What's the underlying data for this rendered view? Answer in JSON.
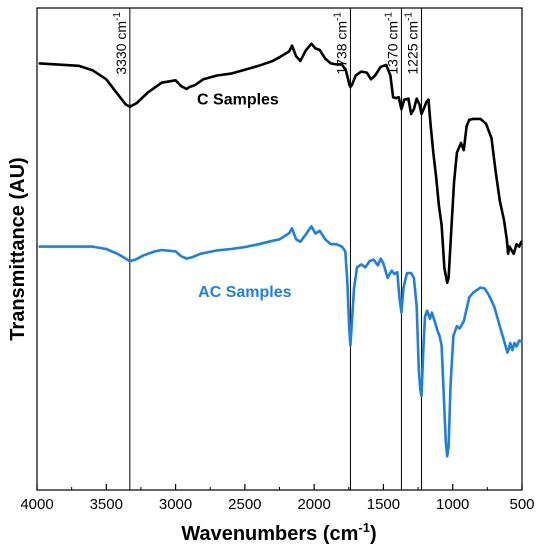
{
  "chart_data": {
    "type": "line",
    "xlabel_main": "Wavenumbers (cm",
    "xlabel_sup": "-1",
    "xlabel_end": ")",
    "ylabel": "Transmittance (AU)",
    "xlim": [
      4000,
      500
    ],
    "x_reversed": true,
    "y_ticks_shown": false,
    "grid": false,
    "x_ticks": [
      4000,
      3500,
      3000,
      2500,
      2000,
      1500,
      1000,
      500
    ],
    "x_tick_labels": [
      "4000",
      "3500",
      "3000",
      "2500",
      "2000",
      "1500",
      "1000",
      "500"
    ],
    "annotations": [
      {
        "x": 3330,
        "label": "3330 cm",
        "sup": "-1"
      },
      {
        "x": 1738,
        "label": "1738 cm",
        "sup": "-1"
      },
      {
        "x": 1370,
        "label": "1370 cm",
        "sup": "-1"
      },
      {
        "x": 1225,
        "label": "1225 cm",
        "sup": "-1"
      }
    ],
    "series": [
      {
        "name": "C Samples",
        "color": "#000000",
        "points": [
          [
            3980,
            0.885
          ],
          [
            3700,
            0.88
          ],
          [
            3600,
            0.871
          ],
          [
            3500,
            0.852
          ],
          [
            3420,
            0.822
          ],
          [
            3360,
            0.8
          ],
          [
            3330,
            0.795
          ],
          [
            3280,
            0.803
          ],
          [
            3200,
            0.825
          ],
          [
            3100,
            0.845
          ],
          [
            3000,
            0.85
          ],
          [
            2960,
            0.838
          ],
          [
            2920,
            0.832
          ],
          [
            2900,
            0.836
          ],
          [
            2860,
            0.84
          ],
          [
            2800,
            0.852
          ],
          [
            2700,
            0.86
          ],
          [
            2600,
            0.864
          ],
          [
            2500,
            0.872
          ],
          [
            2400,
            0.88
          ],
          [
            2300,
            0.89
          ],
          [
            2250,
            0.898
          ],
          [
            2180,
            0.91
          ],
          [
            2160,
            0.922
          ],
          [
            2130,
            0.9
          ],
          [
            2100,
            0.89
          ],
          [
            2060,
            0.912
          ],
          [
            2020,
            0.926
          ],
          [
            1990,
            0.916
          ],
          [
            1960,
            0.913
          ],
          [
            1920,
            0.895
          ],
          [
            1880,
            0.885
          ],
          [
            1840,
            0.883
          ],
          [
            1800,
            0.883
          ],
          [
            1770,
            0.87
          ],
          [
            1745,
            0.84
          ],
          [
            1738,
            0.836
          ],
          [
            1725,
            0.842
          ],
          [
            1700,
            0.86
          ],
          [
            1660,
            0.868
          ],
          [
            1620,
            0.866
          ],
          [
            1590,
            0.852
          ],
          [
            1560,
            0.86
          ],
          [
            1520,
            0.878
          ],
          [
            1480,
            0.882
          ],
          [
            1450,
            0.86
          ],
          [
            1430,
            0.815
          ],
          [
            1410,
            0.813
          ],
          [
            1390,
            0.815
          ],
          [
            1370,
            0.79
          ],
          [
            1350,
            0.81
          ],
          [
            1320,
            0.812
          ],
          [
            1300,
            0.78
          ],
          [
            1280,
            0.79
          ],
          [
            1260,
            0.812
          ],
          [
            1240,
            0.8
          ],
          [
            1225,
            0.78
          ],
          [
            1210,
            0.79
          ],
          [
            1190,
            0.805
          ],
          [
            1175,
            0.81
          ],
          [
            1160,
            0.76
          ],
          [
            1140,
            0.7
          ],
          [
            1120,
            0.65
          ],
          [
            1100,
            0.59
          ],
          [
            1080,
            0.55
          ],
          [
            1060,
            0.46
          ],
          [
            1040,
            0.43
          ],
          [
            1030,
            0.44
          ],
          [
            1010,
            0.54
          ],
          [
            990,
            0.64
          ],
          [
            970,
            0.7
          ],
          [
            940,
            0.72
          ],
          [
            920,
            0.705
          ],
          [
            900,
            0.755
          ],
          [
            880,
            0.768
          ],
          [
            850,
            0.77
          ],
          [
            800,
            0.77
          ],
          [
            760,
            0.76
          ],
          [
            720,
            0.73
          ],
          [
            690,
            0.66
          ],
          [
            660,
            0.6
          ],
          [
            630,
            0.56
          ],
          [
            610,
            0.52
          ],
          [
            600,
            0.49
          ],
          [
            590,
            0.505
          ],
          [
            580,
            0.5
          ],
          [
            560,
            0.49
          ],
          [
            540,
            0.51
          ],
          [
            520,
            0.505
          ],
          [
            505,
            0.515
          ]
        ]
      },
      {
        "name": "AC Samples",
        "color": "#1f7fdc",
        "points": [
          [
            3980,
            0.505
          ],
          [
            3700,
            0.505
          ],
          [
            3600,
            0.505
          ],
          [
            3500,
            0.5
          ],
          [
            3420,
            0.49
          ],
          [
            3360,
            0.48
          ],
          [
            3330,
            0.475
          ],
          [
            3290,
            0.478
          ],
          [
            3230,
            0.487
          ],
          [
            3150,
            0.495
          ],
          [
            3100,
            0.498
          ],
          [
            3000,
            0.495
          ],
          [
            2960,
            0.485
          ],
          [
            2920,
            0.48
          ],
          [
            2880,
            0.483
          ],
          [
            2820,
            0.49
          ],
          [
            2700,
            0.497
          ],
          [
            2600,
            0.5
          ],
          [
            2500,
            0.504
          ],
          [
            2400,
            0.51
          ],
          [
            2300,
            0.517
          ],
          [
            2250,
            0.52
          ],
          [
            2180,
            0.533
          ],
          [
            2160,
            0.543
          ],
          [
            2130,
            0.52
          ],
          [
            2100,
            0.515
          ],
          [
            2060,
            0.53
          ],
          [
            2020,
            0.547
          ],
          [
            1990,
            0.532
          ],
          [
            1960,
            0.538
          ],
          [
            1920,
            0.52
          ],
          [
            1880,
            0.51
          ],
          [
            1840,
            0.51
          ],
          [
            1800,
            0.505
          ],
          [
            1775,
            0.495
          ],
          [
            1760,
            0.43
          ],
          [
            1748,
            0.34
          ],
          [
            1738,
            0.3
          ],
          [
            1728,
            0.345
          ],
          [
            1712,
            0.42
          ],
          [
            1690,
            0.462
          ],
          [
            1660,
            0.468
          ],
          [
            1630,
            0.462
          ],
          [
            1600,
            0.475
          ],
          [
            1570,
            0.478
          ],
          [
            1540,
            0.466
          ],
          [
            1520,
            0.48
          ],
          [
            1500,
            0.47
          ],
          [
            1470,
            0.44
          ],
          [
            1440,
            0.455
          ],
          [
            1420,
            0.448
          ],
          [
            1400,
            0.452
          ],
          [
            1385,
            0.4
          ],
          [
            1370,
            0.368
          ],
          [
            1355,
            0.42
          ],
          [
            1330,
            0.45
          ],
          [
            1300,
            0.45
          ],
          [
            1280,
            0.44
          ],
          [
            1260,
            0.38
          ],
          [
            1245,
            0.25
          ],
          [
            1235,
            0.21
          ],
          [
            1225,
            0.195
          ],
          [
            1212,
            0.29
          ],
          [
            1200,
            0.36
          ],
          [
            1185,
            0.372
          ],
          [
            1165,
            0.355
          ],
          [
            1150,
            0.368
          ],
          [
            1130,
            0.35
          ],
          [
            1110,
            0.33
          ],
          [
            1095,
            0.32
          ],
          [
            1080,
            0.3
          ],
          [
            1065,
            0.2
          ],
          [
            1050,
            0.1
          ],
          [
            1040,
            0.07
          ],
          [
            1030,
            0.09
          ],
          [
            1015,
            0.22
          ],
          [
            995,
            0.32
          ],
          [
            970,
            0.34
          ],
          [
            950,
            0.335
          ],
          [
            920,
            0.35
          ],
          [
            880,
            0.4
          ],
          [
            850,
            0.41
          ],
          [
            800,
            0.42
          ],
          [
            770,
            0.418
          ],
          [
            740,
            0.405
          ],
          [
            700,
            0.38
          ],
          [
            670,
            0.35
          ],
          [
            640,
            0.32
          ],
          [
            620,
            0.3
          ],
          [
            605,
            0.285
          ],
          [
            595,
            0.293
          ],
          [
            585,
            0.305
          ],
          [
            570,
            0.29
          ],
          [
            555,
            0.305
          ],
          [
            540,
            0.298
          ],
          [
            520,
            0.31
          ],
          [
            505,
            0.308
          ]
        ]
      }
    ],
    "series_labels": [
      {
        "series": 0,
        "text": "C Samples",
        "x": 2550,
        "y": 0.8
      },
      {
        "series": 1,
        "text": "AC Samples",
        "x": 2500,
        "y": 0.4
      }
    ]
  }
}
